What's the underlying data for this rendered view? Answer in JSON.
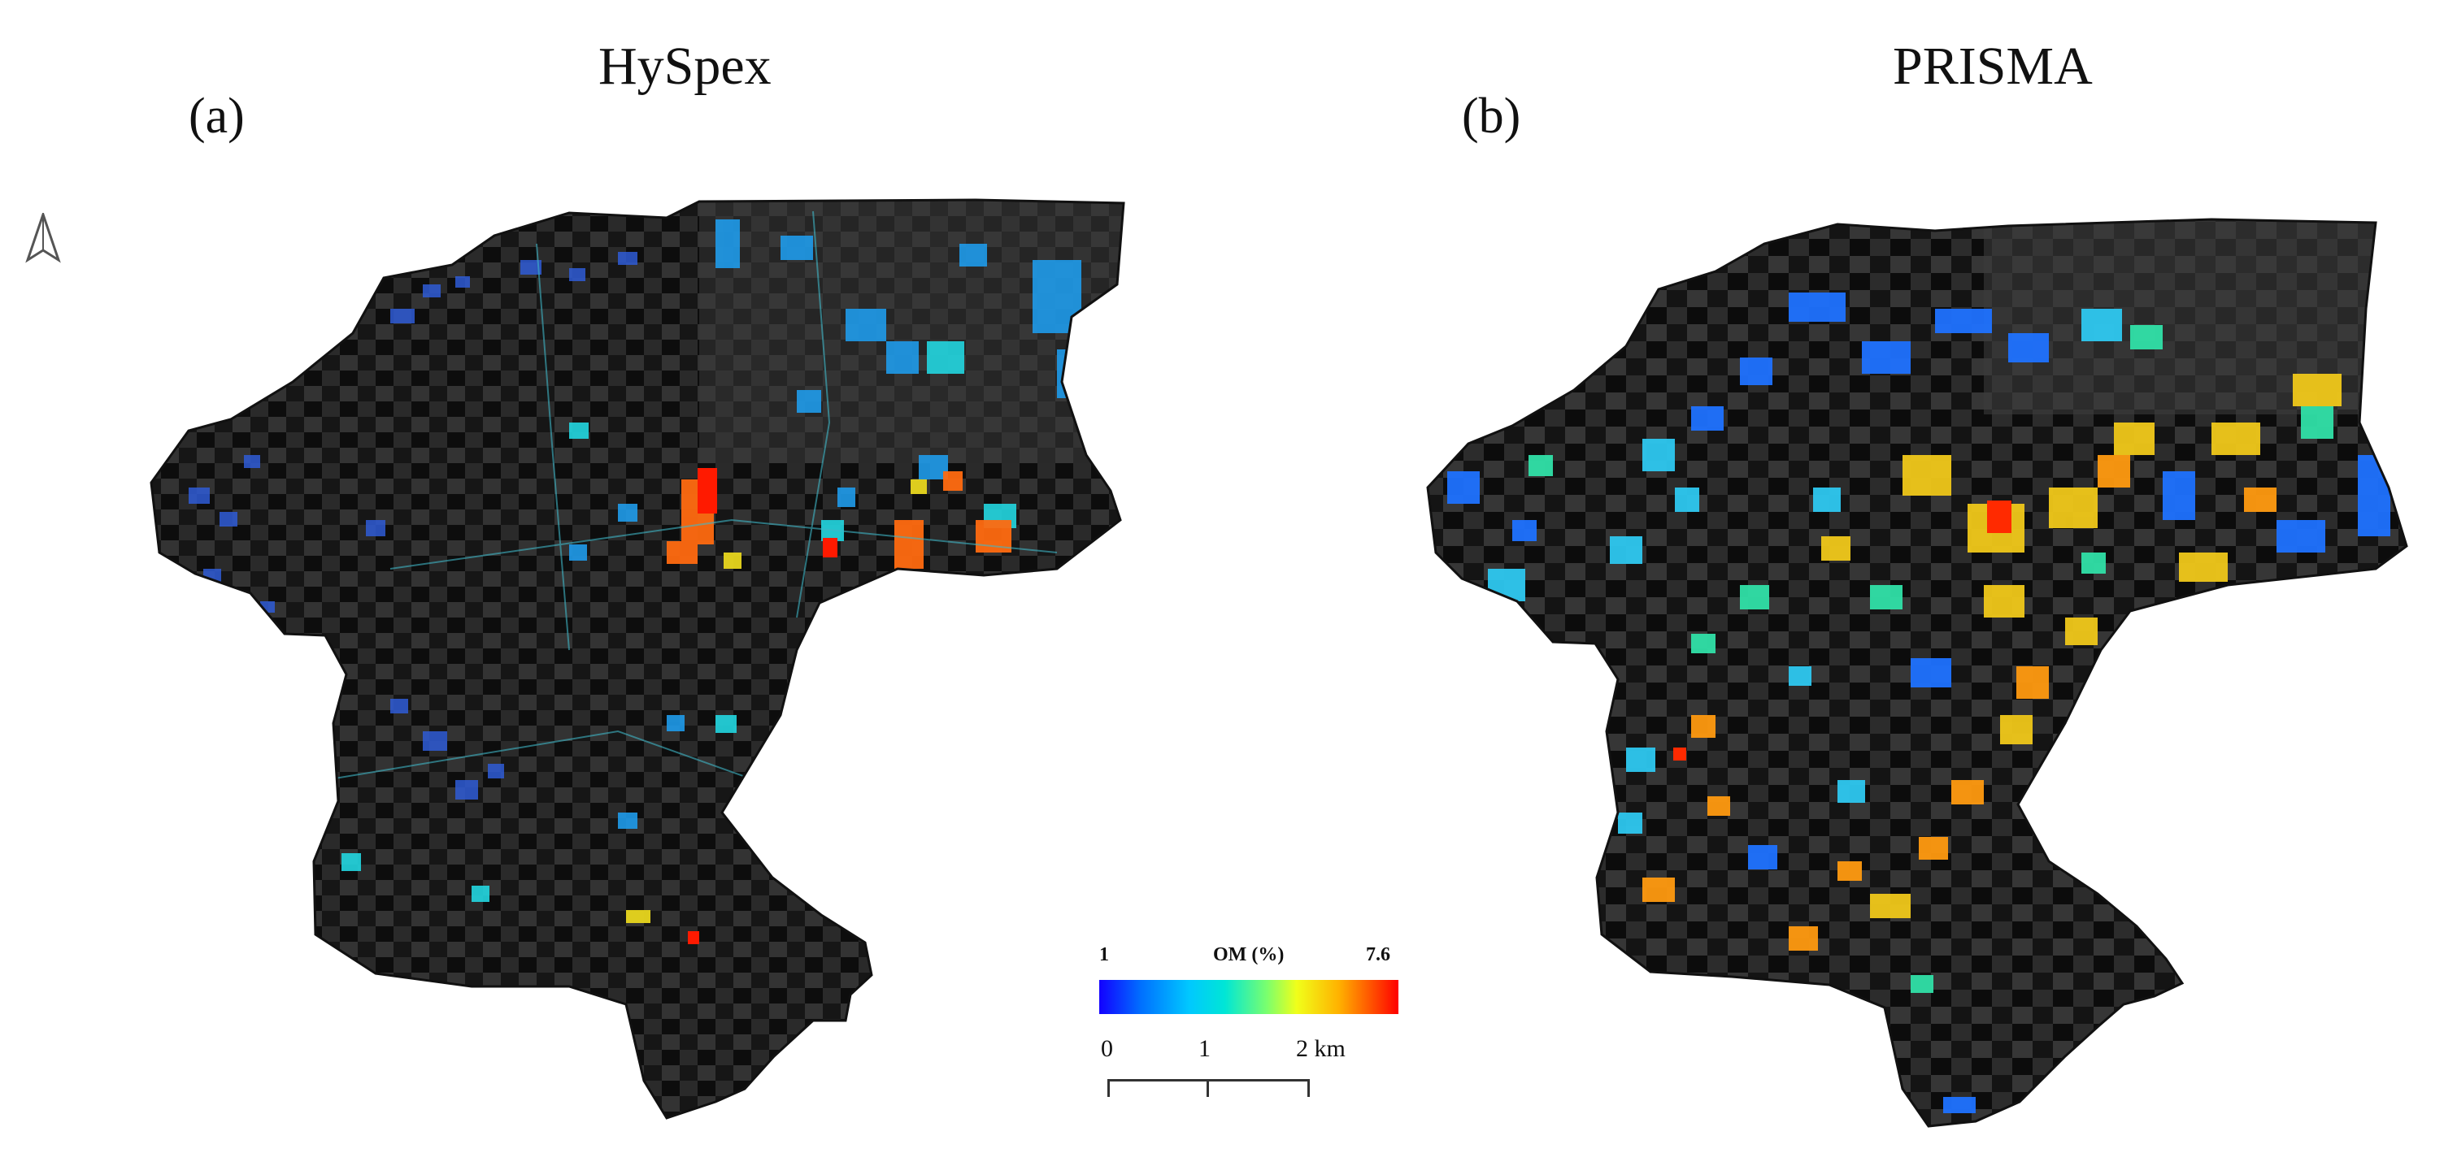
{
  "panels": {
    "a": {
      "title": "HySpex",
      "label": "(a)"
    },
    "b": {
      "title": "PRISMA",
      "label": "(b)"
    }
  },
  "legend": {
    "title": "OM (%)",
    "min": "1",
    "max": "7.6",
    "colors": [
      "#1300ff",
      "#0070ff",
      "#00c8ff",
      "#00e6d6",
      "#7aff6e",
      "#f0ff1a",
      "#ffb200",
      "#ff5a00",
      "#ff0000"
    ]
  },
  "scale_bar": {
    "ticks": [
      "0",
      "1",
      "2 km"
    ]
  },
  "icons": {
    "north_arrow": "north-arrow-icon"
  }
}
